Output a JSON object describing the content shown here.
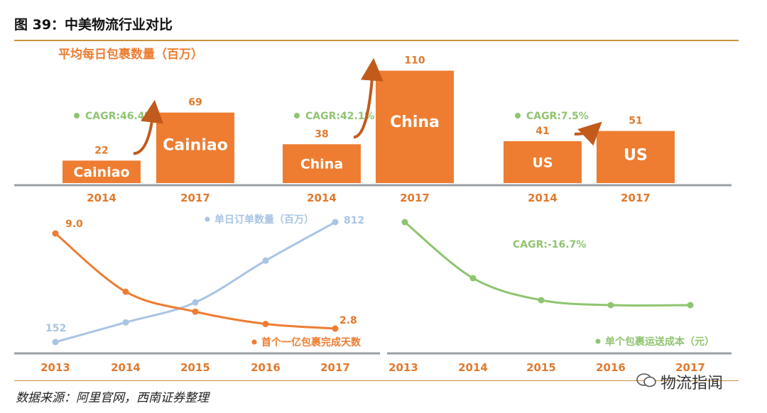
{
  "figure_title": "图 39：中美物流行业对比",
  "source": "数据来源：阿里官网，西南证券整理",
  "watermark": "物流指闻",
  "colors": {
    "orange": "#ee7d31",
    "blue": "#a9c4e4",
    "green": "#8fc470",
    "axis": "#9aa0a6",
    "rule": "#c8913c"
  },
  "chart_data": [
    {
      "type": "bar",
      "title": "平均每日包裹数量（百万）",
      "groups": [
        {
          "name": "Cainiao",
          "cagr": "CAGR:46.4%",
          "categories": [
            "2014",
            "2017"
          ],
          "values": [
            22,
            69
          ]
        },
        {
          "name": "China",
          "cagr": "CAGR:42.1%",
          "categories": [
            "2014",
            "2017"
          ],
          "values": [
            38,
            110
          ]
        },
        {
          "name": "US",
          "cagr": "CAGR:7.5%",
          "categories": [
            "2014",
            "2017"
          ],
          "values": [
            41,
            51
          ]
        }
      ]
    },
    {
      "type": "line",
      "x": [
        "2013",
        "2014",
        "2015",
        "2016",
        "2017"
      ],
      "series": [
        {
          "name": "单日订单数量（百万）",
          "values": [
            152,
            260,
            370,
            600,
            812
          ],
          "labels": [
            "152",
            "",
            "",
            "",
            "812"
          ]
        },
        {
          "name": "首个一亿包裹完成天数",
          "values": [
            9.0,
            5.2,
            3.9,
            3.1,
            2.8
          ],
          "labels": [
            "9.0",
            "",
            "",
            "",
            "2.8"
          ]
        }
      ]
    },
    {
      "type": "line",
      "x": [
        "2013",
        "2014",
        "2015",
        "2016",
        "2017"
      ],
      "annotation": "CAGR:-16.7%",
      "series": [
        {
          "name": "单个包裹运送成本（元）",
          "values": [
            1.0,
            0.72,
            0.61,
            0.585,
            0.585
          ]
        }
      ]
    }
  ]
}
